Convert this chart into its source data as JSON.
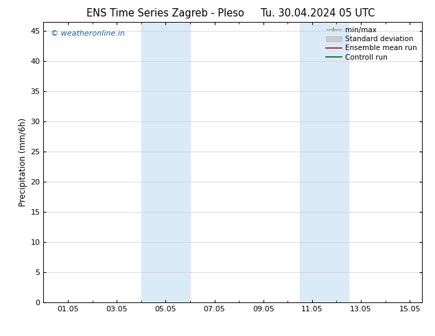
{
  "title_left": "ENS Time Series Zagreb - Pleso",
  "title_right": "Tu. 30.04.2024 05 UTC",
  "ylabel": "Precipitation (mm/6h)",
  "xlabel_ticks": [
    "01.05",
    "03.05",
    "05.05",
    "07.05",
    "09.05",
    "11.05",
    "13.05",
    "15.05"
  ],
  "xlim": [
    0,
    15.5
  ],
  "ylim": [
    0,
    46.5
  ],
  "yticks": [
    0,
    5,
    10,
    15,
    20,
    25,
    30,
    35,
    40,
    45
  ],
  "bg_color": "#ffffff",
  "plot_bg_color": "#ffffff",
  "shaded_bands": [
    {
      "xmin": 4.0,
      "xmax": 6.0,
      "color": "#daeaf7"
    },
    {
      "xmin": 10.5,
      "xmax": 12.5,
      "color": "#daeaf7"
    }
  ],
  "watermark_text": "© weatheronline.in",
  "watermark_color": "#1a5fa8",
  "legend_items": [
    {
      "label": "min/max",
      "color": "#999999",
      "lw": 1.0,
      "style": "-"
    },
    {
      "label": "Standard deviation",
      "color": "#bbbbbb",
      "lw": 5,
      "style": "-"
    },
    {
      "label": "Ensemble mean run",
      "color": "#cc0000",
      "lw": 1.2,
      "style": "-"
    },
    {
      "label": "Controll run",
      "color": "#006600",
      "lw": 1.2,
      "style": "-"
    }
  ],
  "font_size_title": 10.5,
  "font_size_ylabel": 8.5,
  "font_size_ticks": 8,
  "font_size_watermark": 8,
  "font_size_legend": 7.5,
  "tick_label_positions": [
    1,
    3,
    5,
    7,
    9,
    11,
    13,
    15
  ],
  "grid_color": "#cccccc",
  "spine_color": "#000000"
}
